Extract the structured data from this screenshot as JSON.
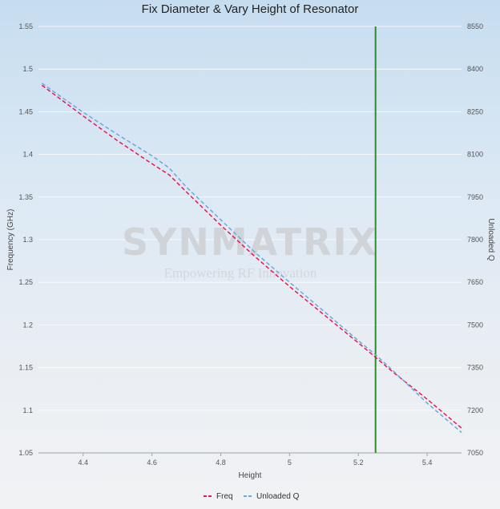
{
  "chart_data": {
    "type": "line",
    "title": "Fix Diameter & Vary Height of Resonator",
    "xlabel": "Height",
    "ylabel": "Frequency (GHz)",
    "y2label": "Unloaded Q",
    "xlim": [
      4.27,
      5.5
    ],
    "ylim": [
      1.05,
      1.55
    ],
    "y2lim": [
      7050,
      8550
    ],
    "x_ticks": [
      "4.4",
      "4.6",
      "4.8",
      "5",
      "5.2",
      "5.4"
    ],
    "y_ticks": [
      "1.05",
      "1.1",
      "1.15",
      "1.2",
      "1.25",
      "1.3",
      "1.35",
      "1.4",
      "1.45",
      "1.5",
      "1.55"
    ],
    "y2_ticks": [
      "7050",
      "7200",
      "7350",
      "7500",
      "7650",
      "7800",
      "7950",
      "8100",
      "8250",
      "8400",
      "8550"
    ],
    "marker_line": {
      "x": 5.25,
      "color": "#2e8b2e"
    },
    "grid": true,
    "legend_position": "bottom",
    "series": [
      {
        "name": "Freq",
        "axis": "left",
        "color": "#e8194f",
        "dash": "dashed",
        "x": [
          4.28,
          4.4,
          4.5,
          4.6,
          4.65,
          4.7,
          4.8,
          4.9,
          5.0,
          5.1,
          5.2,
          5.25,
          5.3,
          5.4,
          5.5
        ],
        "y": [
          1.481,
          1.445,
          1.416,
          1.389,
          1.376,
          1.356,
          1.317,
          1.28,
          1.245,
          1.212,
          1.179,
          1.162,
          1.145,
          1.113,
          1.079
        ]
      },
      {
        "name": "Unloaded Q",
        "axis": "right",
        "color": "#6aa8e0",
        "dash": "dashed",
        "x": [
          4.28,
          4.4,
          4.5,
          4.6,
          4.65,
          4.7,
          4.8,
          4.9,
          5.0,
          5.1,
          5.2,
          5.25,
          5.3,
          5.4,
          5.5
        ],
        "y": [
          8350,
          8248,
          8170,
          8095,
          8052,
          7985,
          7870,
          7755,
          7650,
          7548,
          7445,
          7395,
          7340,
          7225,
          7122
        ]
      }
    ]
  },
  "watermark": {
    "brand": "SYNMATRIX",
    "tagline": "Empowering RF Innovation"
  }
}
